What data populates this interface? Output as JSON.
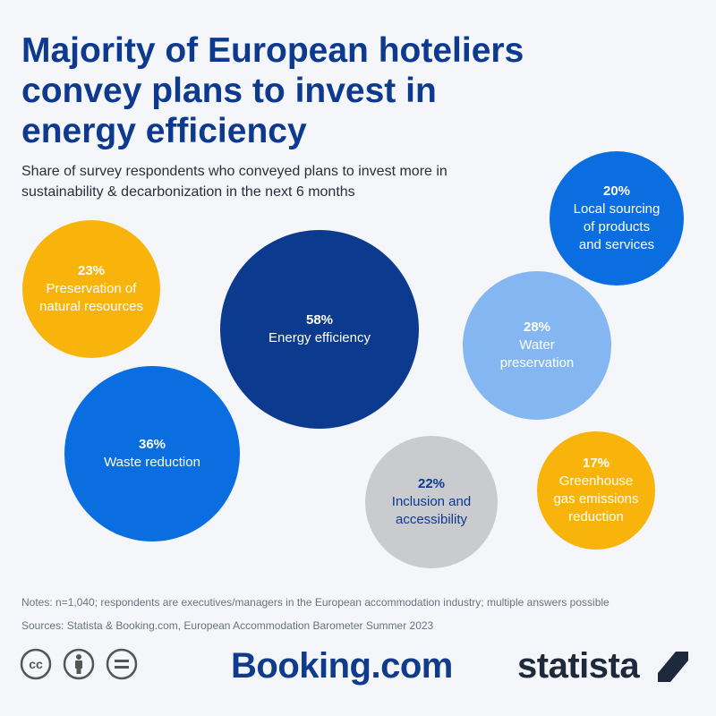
{
  "title": "Majority of European hoteliers convey plans to invest in energy efficiency",
  "subtitle": "Share of survey respondents who conveyed plans to invest more in sustainability & decarbonization in the next 6 months",
  "notes": "Notes: n=1,040; respondents are executives/managers in the European accommodation industry; multiple answers possible",
  "sources": "Sources: Statista & Booking.com, European Accommodation Barometer Summer 2023",
  "logos": {
    "booking": "Booking.com",
    "statista": "statista"
  },
  "license_icons": [
    "cc-icon",
    "attribution-icon",
    "no-derivatives-icon"
  ],
  "colors": {
    "dark_blue": "#0c3a8f",
    "blue": "#0b6ee0",
    "light_blue": "#84b7f2",
    "yellow": "#f8b40b",
    "grey": "#c9cbce"
  },
  "chart_data": {
    "type": "bubble",
    "unit": "%",
    "items": [
      {
        "percent_label": "58%",
        "label": "Energy efficiency",
        "value": 58,
        "color": "#0c3a8f",
        "text_color": "#ffffff"
      },
      {
        "percent_label": "36%",
        "label": "Waste reduction",
        "value": 36,
        "color": "#0b6ee0",
        "text_color": "#ffffff"
      },
      {
        "percent_label": "28%",
        "label": "Water preservation",
        "value": 28,
        "color": "#84b7f2",
        "text_color": "#ffffff"
      },
      {
        "percent_label": "23%",
        "label": "Preservation of natural resources",
        "value": 23,
        "color": "#f8b40b",
        "text_color": "#ffffff"
      },
      {
        "percent_label": "22%",
        "label": "Inclusion and accessibility",
        "value": 22,
        "color": "#c9cbce",
        "text_color": "#0c3a8f"
      },
      {
        "percent_label": "20%",
        "label": "Local sourcing of products and services",
        "value": 20,
        "color": "#0b6ee0",
        "text_color": "#ffffff"
      },
      {
        "percent_label": "17%",
        "label": "Greenhouse gas emissions reduction",
        "value": 17,
        "color": "#f8b40b",
        "text_color": "#ffffff"
      }
    ]
  }
}
